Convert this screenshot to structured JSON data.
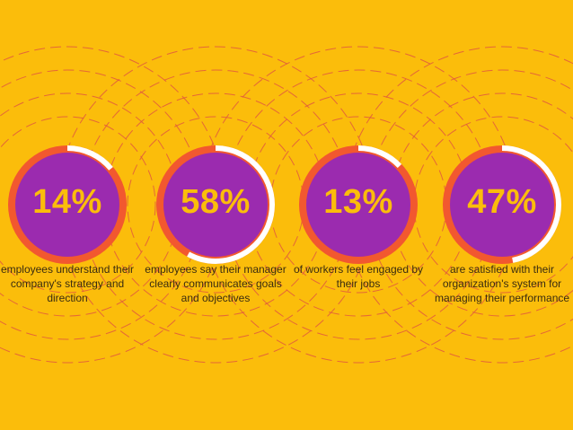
{
  "colors": {
    "background": "#FBBD0B",
    "disc": "#9B2BAF",
    "ring": "#F2582F",
    "progress": "#FFFFFF",
    "dashed_lines": "#E0583F",
    "percent_text": "#FBBD0B",
    "body_text": "#3A2C10"
  },
  "stats": [
    {
      "value": "14%",
      "fraction": 0.14,
      "description": "employees understand their company's strategy and direction"
    },
    {
      "value": "58%",
      "fraction": 0.58,
      "description": "employees say their manager clearly communicates goals and objectives"
    },
    {
      "value": "13%",
      "fraction": 0.13,
      "description": "of workers feel engaged by their jobs"
    },
    {
      "value": "47%",
      "fraction": 0.47,
      "description": "are satisfied with their organization's system for managing their performance"
    }
  ]
}
